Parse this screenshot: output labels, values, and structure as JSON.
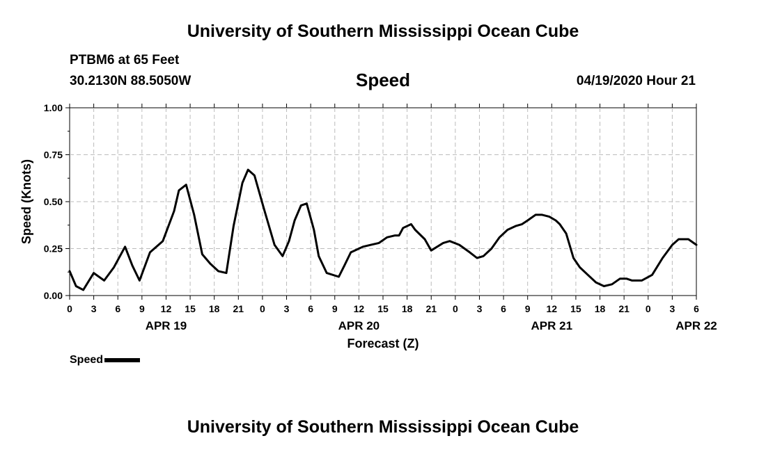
{
  "header": {
    "title": "University of Southern Mississippi Ocean Cube",
    "station": "PTBM6 at 65 Feet",
    "coordinates": "30.2130N 88.5050W",
    "date": "04/19/2020 Hour 21"
  },
  "footer": {
    "title": "University of Southern Mississippi Ocean Cube"
  },
  "chart_data": {
    "type": "line",
    "title": "Speed",
    "xlabel": "Forecast (Z)",
    "ylabel": "Speed (Knots)",
    "x_unit": "hours since APR 19 00Z",
    "xlim": [
      0,
      78
    ],
    "ylim": [
      0,
      1.0
    ],
    "yticks": [
      "0.00",
      "0.25",
      "0.50",
      "0.75",
      "1.00"
    ],
    "ytick_values": [
      0,
      0.25,
      0.5,
      0.75,
      1.0
    ],
    "xtick_labels": [
      "0",
      "3",
      "6",
      "9",
      "12",
      "15",
      "18",
      "21",
      "0",
      "3",
      "6",
      "9",
      "12",
      "15",
      "18",
      "21",
      "0",
      "3",
      "6",
      "9",
      "12",
      "15",
      "18",
      "21",
      "0",
      "3",
      "6"
    ],
    "date_labels": [
      {
        "label": "APR 19",
        "hour": 12
      },
      {
        "label": "APR 20",
        "hour": 36
      },
      {
        "label": "APR 21",
        "hour": 60
      },
      {
        "label": "APR 22",
        "hour": 78
      }
    ],
    "grid": true,
    "legend": "bottom-left",
    "series": [
      {
        "name": "Speed",
        "x": [
          0,
          0.8,
          1.7,
          3,
          4.3,
          5.5,
          6.9,
          7.8,
          8.7,
          10,
          11.6,
          13,
          13.6,
          14.5,
          15.5,
          16.5,
          17.5,
          18.5,
          19.5,
          20.4,
          21.5,
          22.2,
          23,
          24.2,
          25.5,
          26.5,
          27.3,
          28,
          28.8,
          29.5,
          30.4,
          31,
          32,
          33.5,
          34.2,
          35,
          36.5,
          37.5,
          38.5,
          39.5,
          40.5,
          41,
          41.5,
          42.5,
          43,
          44.2,
          45,
          46.5,
          47.3,
          48.5,
          49.8,
          50.7,
          51.5,
          52.5,
          53.5,
          54.5,
          55.5,
          56.3,
          57,
          58,
          58.8,
          59.7,
          60.5,
          61,
          61.8,
          62.7,
          63.5,
          64.5,
          65.5,
          66.5,
          67.5,
          68.5,
          69.3,
          70,
          71.2,
          72.5,
          73.8,
          75,
          75.8,
          77,
          78
        ],
        "values": [
          0.13,
          0.05,
          0.03,
          0.12,
          0.08,
          0.15,
          0.26,
          0.16,
          0.08,
          0.23,
          0.29,
          0.45,
          0.56,
          0.59,
          0.43,
          0.22,
          0.17,
          0.13,
          0.12,
          0.37,
          0.6,
          0.67,
          0.64,
          0.46,
          0.27,
          0.21,
          0.29,
          0.4,
          0.48,
          0.49,
          0.35,
          0.21,
          0.12,
          0.1,
          0.16,
          0.23,
          0.26,
          0.27,
          0.28,
          0.31,
          0.32,
          0.32,
          0.36,
          0.38,
          0.35,
          0.3,
          0.24,
          0.28,
          0.29,
          0.27,
          0.23,
          0.2,
          0.21,
          0.25,
          0.31,
          0.35,
          0.37,
          0.38,
          0.4,
          0.43,
          0.43,
          0.42,
          0.4,
          0.38,
          0.33,
          0.2,
          0.15,
          0.11,
          0.07,
          0.05,
          0.06,
          0.09,
          0.09,
          0.08,
          0.08,
          0.11,
          0.2,
          0.27,
          0.3,
          0.3,
          0.27
        ]
      }
    ]
  }
}
